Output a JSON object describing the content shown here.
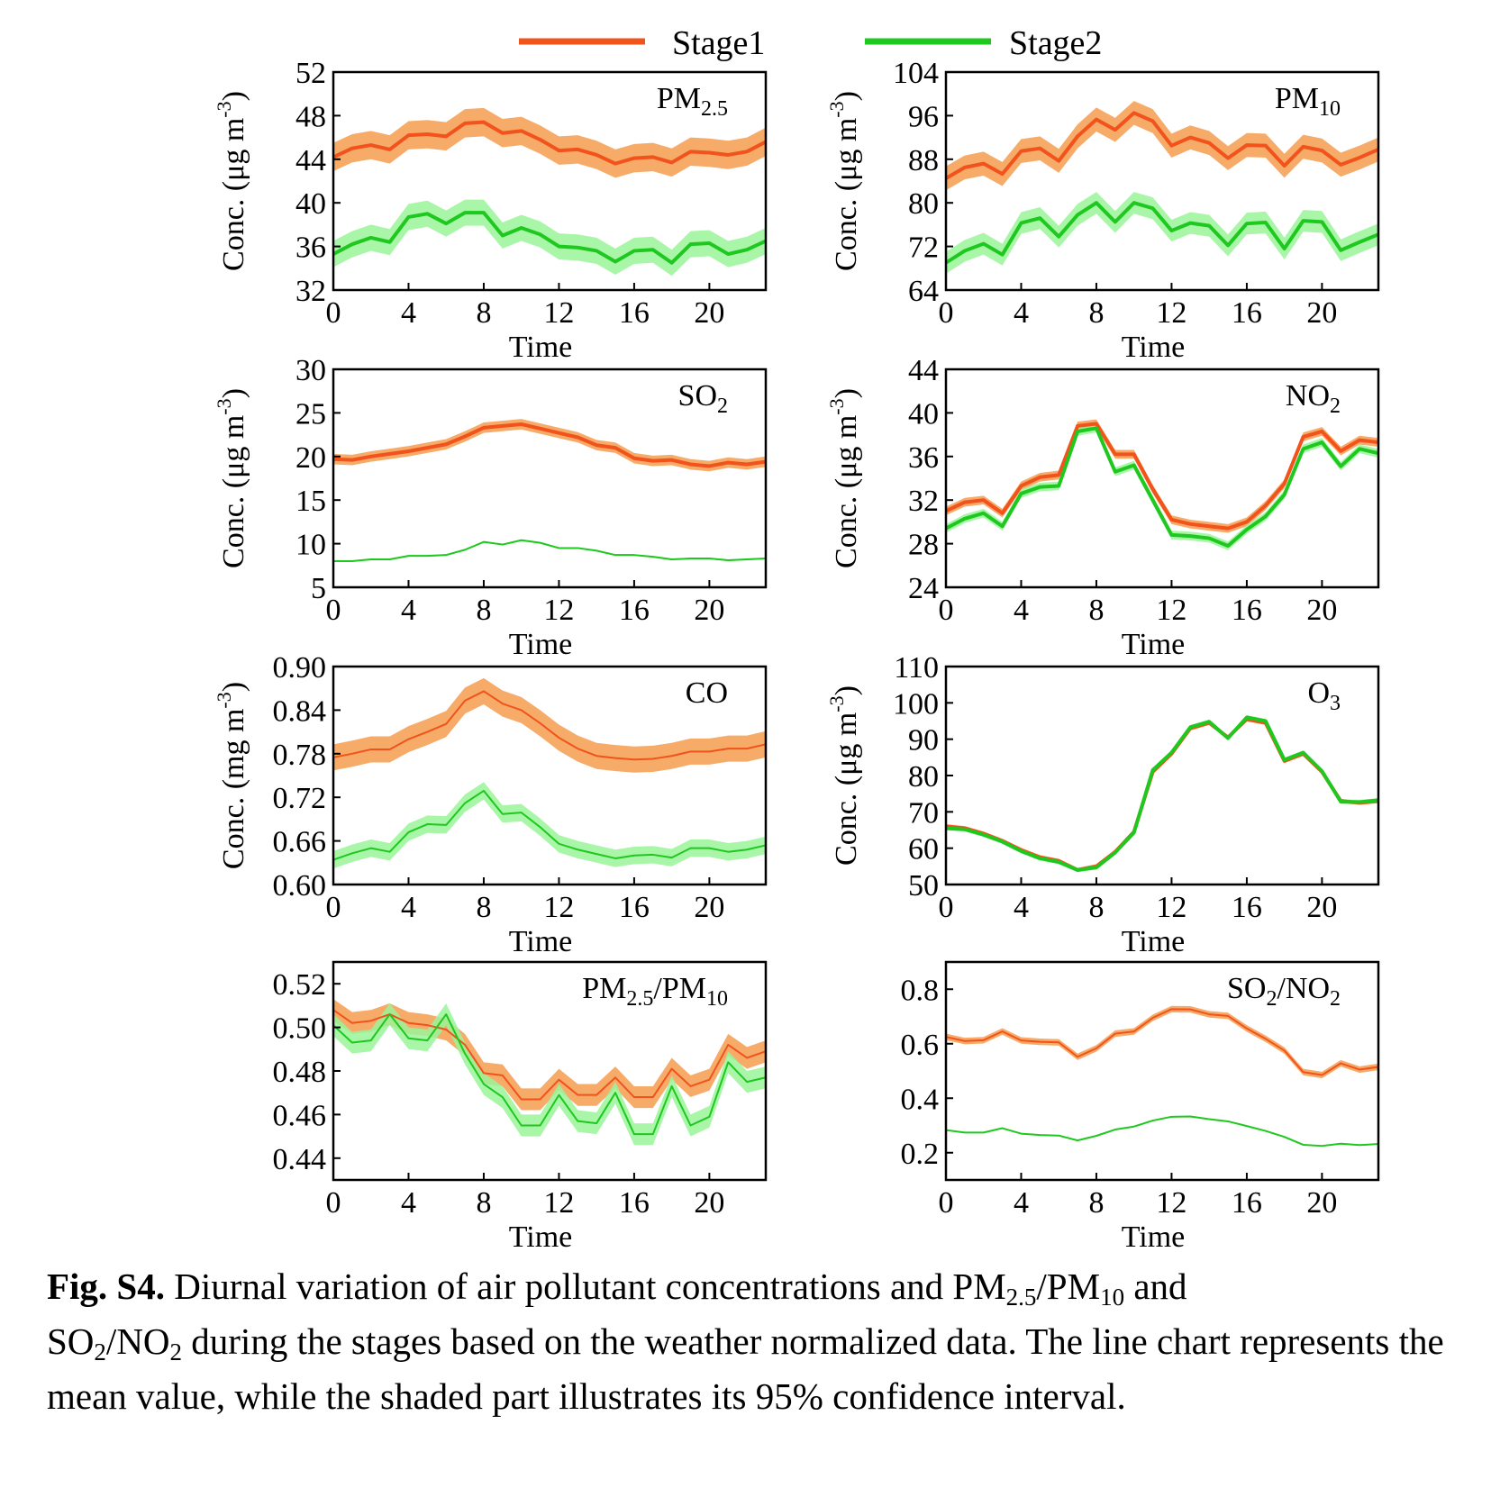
{
  "legend": {
    "items": [
      {
        "label": "Stage1",
        "color": "#f2521b"
      },
      {
        "label": "Stage2",
        "color": "#1ec81e"
      }
    ]
  },
  "colors": {
    "stage1_line": "#f2521b",
    "stage1_band": "#f59c4f",
    "stage2_line": "#1ec81e",
    "stage2_band": "#9af59a"
  },
  "caption": {
    "label": "Fig. S4.",
    "t1": " Diurnal variation of air pollutant concentrations and PM",
    "s1": "2.5",
    "t2": "/PM",
    "s2": "10",
    "t3": " and",
    "t4": "SO",
    "s3": "2",
    "t5": "/NO",
    "s4": "2",
    "t6": " during the stages based on the weather normalized data. The line chart represents the mean value, while the shaded part illustrates its 95% confidence interval."
  },
  "chart_data": [
    {
      "type": "line",
      "title_main": "PM",
      "title_sub": "2.5",
      "xlabel": "Time",
      "ylabel": "Conc. (μg m",
      "ylabel_sup": "-3",
      "ylabel_end": ")",
      "xlim": [
        0,
        23
      ],
      "ylim": [
        32,
        52
      ],
      "yticks": [
        "32",
        "36",
        "40",
        "44",
        "48",
        "52"
      ],
      "xticks": [
        "0",
        "4",
        "8",
        "12",
        "16",
        "20"
      ],
      "x": [
        0,
        1,
        2,
        3,
        4,
        5,
        6,
        7,
        8,
        9,
        10,
        11,
        12,
        13,
        14,
        15,
        16,
        17,
        18,
        19,
        20,
        21,
        22,
        23
      ],
      "series": [
        {
          "name": "Stage1",
          "values": [
            44.2,
            45.0,
            45.3,
            44.9,
            46.2,
            46.3,
            46.1,
            47.3,
            47.4,
            46.4,
            46.6,
            45.8,
            44.8,
            44.9,
            44.4,
            43.6,
            44.1,
            44.2,
            43.7,
            44.7,
            44.6,
            44.4,
            44.7,
            45.6
          ],
          "ci": 1.3
        },
        {
          "name": "Stage2",
          "values": [
            35.3,
            36.2,
            36.8,
            36.4,
            38.7,
            39.0,
            38.1,
            39.1,
            39.1,
            37.0,
            37.7,
            37.1,
            36.0,
            35.9,
            35.6,
            34.6,
            35.6,
            35.7,
            34.5,
            36.2,
            36.3,
            35.3,
            35.7,
            36.5
          ],
          "ci": 1.2
        }
      ]
    },
    {
      "type": "line",
      "title_main": "PM",
      "title_sub": "10",
      "xlabel": "Time",
      "ylabel": "Conc. (μg m",
      "ylabel_sup": "-3",
      "ylabel_end": ")",
      "xlim": [
        0,
        23
      ],
      "ylim": [
        64,
        104
      ],
      "yticks": [
        "64",
        "72",
        "80",
        "88",
        "96",
        "104"
      ],
      "xticks": [
        "0",
        "4",
        "8",
        "12",
        "16",
        "20"
      ],
      "x": [
        0,
        1,
        2,
        3,
        4,
        5,
        6,
        7,
        8,
        9,
        10,
        11,
        12,
        13,
        14,
        15,
        16,
        17,
        18,
        19,
        20,
        21,
        22,
        23
      ],
      "series": [
        {
          "name": "Stage1",
          "values": [
            84.5,
            86.5,
            87.2,
            85.3,
            89.5,
            90.0,
            87.7,
            92.2,
            95.3,
            93.4,
            96.5,
            95.0,
            90.5,
            92.0,
            91.0,
            88.2,
            90.6,
            90.5,
            86.8,
            90.3,
            89.6,
            87.0,
            88.3,
            89.8
          ],
          "ci": 2.2
        },
        {
          "name": "Stage2",
          "values": [
            69.0,
            71.2,
            72.5,
            70.5,
            76.3,
            77.2,
            73.8,
            77.8,
            80.0,
            76.5,
            80.0,
            79.0,
            74.9,
            76.3,
            75.8,
            72.2,
            76.2,
            76.4,
            71.6,
            76.7,
            76.5,
            71.3,
            72.8,
            74.2
          ],
          "ci": 2.0
        }
      ]
    },
    {
      "type": "line",
      "title_main": "SO",
      "title_sub": "2",
      "xlabel": "Time",
      "ylabel": "Conc. (μg m",
      "ylabel_sup": "-3",
      "ylabel_end": ")",
      "xlim": [
        0,
        23
      ],
      "ylim": [
        5,
        30
      ],
      "yticks": [
        "5",
        "10",
        "15",
        "20",
        "25",
        "30"
      ],
      "xticks": [
        "0",
        "4",
        "8",
        "12",
        "16",
        "20"
      ],
      "x": [
        0,
        1,
        2,
        3,
        4,
        5,
        6,
        7,
        8,
        9,
        10,
        11,
        12,
        13,
        14,
        15,
        16,
        17,
        18,
        19,
        20,
        21,
        22,
        23
      ],
      "series": [
        {
          "name": "Stage1",
          "values": [
            19.7,
            19.6,
            20.0,
            20.3,
            20.6,
            21.0,
            21.4,
            22.3,
            23.3,
            23.5,
            23.7,
            23.2,
            22.7,
            22.2,
            21.3,
            21.0,
            19.8,
            19.5,
            19.6,
            19.1,
            18.9,
            19.3,
            19.1,
            19.4
          ],
          "ci": 0.6
        },
        {
          "name": "Stage2",
          "values": [
            8.0,
            8.0,
            8.2,
            8.2,
            8.6,
            8.6,
            8.7,
            9.3,
            10.2,
            9.9,
            10.4,
            10.1,
            9.5,
            9.5,
            9.2,
            8.7,
            8.7,
            8.5,
            8.2,
            8.3,
            8.3,
            8.1,
            8.2,
            8.3
          ],
          "ci": 0.1
        }
      ]
    },
    {
      "type": "line",
      "title_main": "NO",
      "title_sub": "2",
      "xlabel": "Time",
      "ylabel": "Conc. (μg m",
      "ylabel_sup": "-3",
      "ylabel_end": ")",
      "xlim": [
        0,
        23
      ],
      "ylim": [
        24,
        44
      ],
      "yticks": [
        "24",
        "28",
        "32",
        "36",
        "40",
        "44"
      ],
      "xticks": [
        "0",
        "4",
        "8",
        "12",
        "16",
        "20"
      ],
      "x": [
        0,
        1,
        2,
        3,
        4,
        5,
        6,
        7,
        8,
        9,
        10,
        11,
        12,
        13,
        14,
        15,
        16,
        17,
        18,
        19,
        20,
        21,
        22,
        23
      ],
      "series": [
        {
          "name": "Stage1",
          "values": [
            31.0,
            31.8,
            32.0,
            30.8,
            33.3,
            34.1,
            34.3,
            38.8,
            39.0,
            36.2,
            36.2,
            33.0,
            30.2,
            29.8,
            29.6,
            29.4,
            30.0,
            31.5,
            33.5,
            37.8,
            38.3,
            36.5,
            37.5,
            37.3
          ],
          "ci": 0.4
        },
        {
          "name": "Stage2",
          "values": [
            29.4,
            30.3,
            30.8,
            29.6,
            32.6,
            33.2,
            33.3,
            38.3,
            38.6,
            34.6,
            35.2,
            32.0,
            28.8,
            28.7,
            28.5,
            27.8,
            29.3,
            30.5,
            32.5,
            36.7,
            37.3,
            35.1,
            36.7,
            36.3
          ],
          "ci": 0.4
        }
      ]
    },
    {
      "type": "line",
      "title_main": "CO",
      "title_sub": "",
      "xlabel": "Time",
      "ylabel": "Conc. (mg m",
      "ylabel_sup": "-3",
      "ylabel_end": ")",
      "xlim": [
        0,
        23
      ],
      "ylim": [
        0.6,
        0.9
      ],
      "yticks": [
        "0.60",
        "0.66",
        "0.72",
        "0.78",
        "0.84",
        "0.90"
      ],
      "xticks": [
        "0",
        "4",
        "8",
        "12",
        "16",
        "20"
      ],
      "x": [
        0,
        1,
        2,
        3,
        4,
        5,
        6,
        7,
        8,
        9,
        10,
        11,
        12,
        13,
        14,
        15,
        16,
        17,
        18,
        19,
        20,
        21,
        22,
        23
      ],
      "series": [
        {
          "name": "Stage1",
          "values": [
            0.775,
            0.78,
            0.786,
            0.786,
            0.8,
            0.81,
            0.821,
            0.853,
            0.866,
            0.849,
            0.84,
            0.822,
            0.802,
            0.787,
            0.777,
            0.774,
            0.772,
            0.773,
            0.777,
            0.783,
            0.783,
            0.787,
            0.787,
            0.793
          ],
          "ci": 0.018
        },
        {
          "name": "Stage2",
          "values": [
            0.634,
            0.643,
            0.65,
            0.645,
            0.672,
            0.683,
            0.682,
            0.712,
            0.729,
            0.697,
            0.699,
            0.679,
            0.656,
            0.648,
            0.642,
            0.636,
            0.64,
            0.641,
            0.637,
            0.65,
            0.65,
            0.645,
            0.648,
            0.654
          ],
          "ci": 0.012
        }
      ]
    },
    {
      "type": "line",
      "title_main": "O",
      "title_sub": "3",
      "xlabel": "Time",
      "ylabel": "Conc. (μg m",
      "ylabel_sup": "-3",
      "ylabel_end": ")",
      "xlim": [
        0,
        23
      ],
      "ylim": [
        50,
        110
      ],
      "yticks": [
        "50",
        "60",
        "70",
        "80",
        "90",
        "100",
        "110"
      ],
      "xticks": [
        "0",
        "4",
        "8",
        "12",
        "16",
        "20"
      ],
      "x": [
        0,
        1,
        2,
        3,
        4,
        5,
        6,
        7,
        8,
        9,
        10,
        11,
        12,
        13,
        14,
        15,
        16,
        17,
        18,
        19,
        20,
        21,
        22,
        23
      ],
      "series": [
        {
          "name": "Stage1",
          "values": [
            66.0,
            65.5,
            64.0,
            62.0,
            59.5,
            57.5,
            56.5,
            54.0,
            55.0,
            59.0,
            64.5,
            81.0,
            86.0,
            93.0,
            94.5,
            90.5,
            95.5,
            94.5,
            84.0,
            86.0,
            81.0,
            73.0,
            72.5,
            73.0
          ],
          "ci": 0.6
        },
        {
          "name": "Stage2",
          "values": [
            65.5,
            65.2,
            63.7,
            61.8,
            59.2,
            57.2,
            56.2,
            54.0,
            54.7,
            58.8,
            64.3,
            81.5,
            86.3,
            93.3,
            94.8,
            90.3,
            96.0,
            95.0,
            84.3,
            86.3,
            81.2,
            72.8,
            72.7,
            73.2
          ],
          "ci": 0.6
        }
      ]
    },
    {
      "type": "line",
      "title_main": "PM",
      "title_sub": "2.5",
      "title_main2": "/PM",
      "title_sub2": "10",
      "xlabel": "Time",
      "ylabel": "",
      "ylabel_sup": "",
      "ylabel_end": "",
      "xlim": [
        0,
        23
      ],
      "ylim": [
        0.43,
        0.53
      ],
      "yticks": [
        "0.44",
        "0.46",
        "0.48",
        "0.50",
        "0.52"
      ],
      "ytick_values": [
        0.44,
        0.46,
        0.48,
        0.5,
        0.52
      ],
      "xticks": [
        "0",
        "4",
        "8",
        "12",
        "16",
        "20"
      ],
      "x": [
        0,
        1,
        2,
        3,
        4,
        5,
        6,
        7,
        8,
        9,
        10,
        11,
        12,
        13,
        14,
        15,
        16,
        17,
        18,
        19,
        20,
        21,
        22,
        23
      ],
      "series": [
        {
          "name": "Stage1",
          "values": [
            0.508,
            0.502,
            0.503,
            0.506,
            0.502,
            0.501,
            0.499,
            0.492,
            0.479,
            0.478,
            0.467,
            0.467,
            0.476,
            0.469,
            0.469,
            0.477,
            0.468,
            0.468,
            0.481,
            0.473,
            0.476,
            0.492,
            0.486,
            0.489
          ],
          "ci": 0.005
        },
        {
          "name": "Stage2",
          "values": [
            0.501,
            0.493,
            0.494,
            0.506,
            0.495,
            0.494,
            0.506,
            0.488,
            0.474,
            0.468,
            0.455,
            0.455,
            0.469,
            0.457,
            0.456,
            0.47,
            0.451,
            0.451,
            0.473,
            0.455,
            0.459,
            0.484,
            0.475,
            0.477
          ],
          "ci": 0.005
        }
      ]
    },
    {
      "type": "line",
      "title_main": "SO",
      "title_sub": "2",
      "title_main2": "/NO",
      "title_sub2": "2",
      "xlabel": "Time",
      "ylabel": "",
      "ylabel_sup": "",
      "ylabel_end": "",
      "xlim": [
        0,
        23
      ],
      "ylim": [
        0.1,
        0.9
      ],
      "yticks": [
        "0.2",
        "0.4",
        "0.6",
        "0.8"
      ],
      "ytick_values": [
        0.2,
        0.4,
        0.6,
        0.8
      ],
      "xticks": [
        "0",
        "4",
        "8",
        "12",
        "16",
        "20"
      ],
      "x": [
        0,
        1,
        2,
        3,
        4,
        5,
        6,
        7,
        8,
        9,
        10,
        11,
        12,
        13,
        14,
        15,
        16,
        17,
        18,
        19,
        20,
        21,
        22,
        23
      ],
      "series": [
        {
          "name": "Stage1",
          "values": [
            0.625,
            0.61,
            0.613,
            0.645,
            0.612,
            0.607,
            0.605,
            0.552,
            0.583,
            0.637,
            0.645,
            0.695,
            0.727,
            0.726,
            0.708,
            0.702,
            0.656,
            0.618,
            0.575,
            0.496,
            0.485,
            0.528,
            0.505,
            0.515
          ],
          "ci": 0.012
        },
        {
          "name": "Stage2",
          "values": [
            0.283,
            0.274,
            0.274,
            0.29,
            0.27,
            0.265,
            0.263,
            0.245,
            0.262,
            0.285,
            0.296,
            0.318,
            0.332,
            0.333,
            0.323,
            0.315,
            0.298,
            0.28,
            0.258,
            0.229,
            0.225,
            0.233,
            0.228,
            0.232
          ],
          "ci": 0.002
        }
      ]
    }
  ]
}
